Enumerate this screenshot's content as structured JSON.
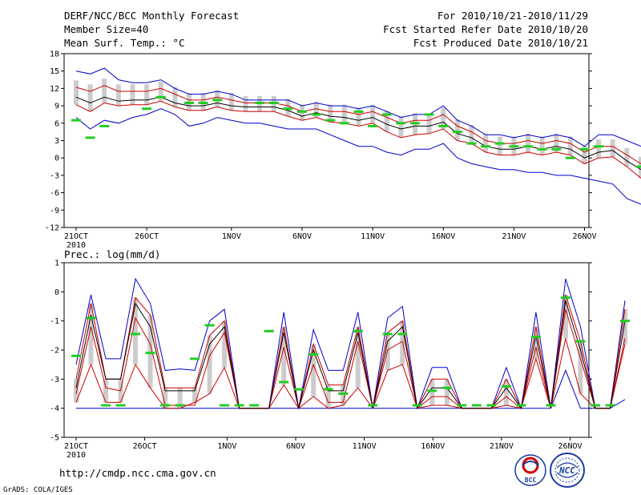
{
  "header": {
    "title": "DERF/NCC/BCC Monthly Forecast",
    "member_size": "Member Size=40",
    "variable": "Mean Surf. Temp.: °C",
    "period": "For 2010/10/21-2010/11/29",
    "started": "Fcst Started Refer Date 2010/10/20",
    "produced": "Fcst Produced Date 2010/10/21"
  },
  "footer": {
    "url": "http://cmdp.ncc.cma.gov.cn",
    "credit": "GrADS: COLA/IGES",
    "logo_bcc": "BCC",
    "logo_ncc": "NCC"
  },
  "colors": {
    "max_min": "#0000cc",
    "mean": "#000000",
    "spread": "#cc0000",
    "observed": "#22cc22",
    "box": "#cccccc"
  },
  "chart_data": [
    {
      "type": "line",
      "title": "Mean Surf. Temp.: °C",
      "ylabel": "°C",
      "ylim": [
        -12,
        18
      ],
      "yticks": [
        -12,
        -9,
        -6,
        -3,
        0,
        3,
        6,
        9,
        12,
        15,
        18
      ],
      "x_tick_labels": [
        "21OCT",
        "26OCT",
        "1NOV",
        "6NOV",
        "11NOV",
        "16NOV",
        "21NOV",
        "26NOV"
      ],
      "x_tick_days": [
        0,
        5,
        11,
        16,
        21,
        26,
        31,
        36
      ],
      "x_year_label": "2010",
      "series": [
        {
          "name": "max",
          "values": [
            15,
            14.5,
            15.5,
            13.5,
            13,
            13,
            13.5,
            12,
            11,
            11,
            11.5,
            11,
            10,
            10,
            10,
            10,
            9,
            9.5,
            9,
            9,
            8.5,
            9,
            8,
            7,
            7.5,
            7.5,
            9,
            6.5,
            5.5,
            4,
            4,
            3.5,
            4,
            3.5,
            4,
            3.5,
            2,
            4,
            4,
            3,
            2
          ]
        },
        {
          "name": "upper",
          "values": [
            12.2,
            11.5,
            12.5,
            11.5,
            11.5,
            11.5,
            12,
            11,
            10,
            10,
            10.5,
            10,
            9.5,
            9.5,
            9.5,
            9,
            8,
            8.5,
            8,
            8,
            7.5,
            8,
            7,
            6,
            6.5,
            6.5,
            7.5,
            5.5,
            4.5,
            3,
            2.5,
            2.5,
            3,
            2.5,
            3,
            2.5,
            1,
            2,
            2,
            0.5,
            -1
          ]
        },
        {
          "name": "mean",
          "values": [
            10.5,
            9.5,
            10.5,
            9.8,
            10,
            10,
            10.5,
            9.5,
            9,
            9,
            9.5,
            9,
            8.8,
            8.8,
            8.8,
            8.2,
            7.2,
            7.8,
            7.2,
            7,
            6.5,
            7,
            5.8,
            5,
            5.5,
            5.5,
            6.2,
            4.2,
            3.5,
            2,
            1.5,
            1.5,
            2,
            1.5,
            2,
            1.5,
            0,
            1,
            1.3,
            -0.5,
            -2
          ]
        },
        {
          "name": "lower",
          "values": [
            9.2,
            8,
            9.5,
            9,
            9.2,
            9.2,
            9.8,
            8.8,
            8.2,
            8.2,
            8.8,
            8.2,
            8,
            8,
            8,
            7.2,
            6.5,
            7,
            6.2,
            6,
            5.5,
            6,
            4.5,
            3.5,
            4,
            4.2,
            5,
            3,
            2.5,
            1,
            0.5,
            0.5,
            1,
            0.5,
            1,
            0.5,
            -1,
            0,
            0.2,
            -1.5,
            -3.5
          ]
        },
        {
          "name": "min",
          "values": [
            7,
            5,
            6.5,
            6,
            7,
            7.5,
            8.5,
            7.5,
            5.5,
            6,
            7,
            6.5,
            6,
            6,
            5.5,
            5,
            5,
            5,
            4,
            3,
            2,
            2,
            1,
            0.5,
            1.5,
            1.5,
            2.5,
            0,
            -1,
            -1.5,
            -2,
            -2,
            -2.5,
            -2.5,
            -3,
            -3,
            -3.5,
            -4,
            -4.5,
            -7,
            -8
          ]
        },
        {
          "name": "observed",
          "values": [
            6.5,
            3.5,
            5.5,
            null,
            null,
            8.5,
            10.5,
            null,
            9.5,
            9.5,
            10,
            null,
            null,
            9.5,
            9.5,
            8.5,
            8,
            7.5,
            6.5,
            6,
            8,
            5.5,
            7.5,
            6,
            6,
            7.5,
            5.5,
            4.5,
            2.5,
            2,
            2.5,
            2,
            2,
            1.5,
            1.5,
            0,
            1.5,
            2,
            null,
            null,
            -1.5
          ]
        }
      ]
    },
    {
      "type": "line",
      "title": "Prec.: log(mm/d)",
      "ylabel": "log(mm/d)",
      "ylim": [
        -5,
        1
      ],
      "yticks": [
        -5,
        -4,
        -3,
        -2,
        -1,
        0,
        1
      ],
      "x_tick_labels": [
        "21OCT",
        "26OCT",
        "1NOV",
        "6NOV",
        "11NOV",
        "16NOV",
        "21NOV",
        "26NOV"
      ],
      "x_tick_days": [
        0,
        5,
        11,
        16,
        21,
        26,
        31,
        36
      ],
      "x_year_label": "2010",
      "series": [
        {
          "name": "max",
          "values": [
            -2.5,
            -0.1,
            -2.3,
            -2.3,
            0.45,
            -0.4,
            -2.7,
            -2.65,
            -2.7,
            -1,
            -0.6,
            -4,
            -4,
            -4,
            -0.7,
            -4,
            -1.3,
            -2.7,
            -2.7,
            -0.7,
            -4,
            -0.9,
            -0.5,
            -4,
            -2.6,
            -2.6,
            -4,
            -4,
            -4,
            -2.6,
            -4,
            -0.7,
            -4,
            0.45,
            -1.2,
            -4,
            -4,
            -0.3
          ]
        },
        {
          "name": "upper",
          "values": [
            -3,
            -0.4,
            -3,
            -3,
            -0.2,
            -0.8,
            -3.3,
            -3.3,
            -3.3,
            -1.5,
            -1,
            -4,
            -4,
            -4,
            -1.2,
            -4,
            -1.8,
            -3.2,
            -3.2,
            -1.2,
            -4,
            -1.4,
            -1,
            -4,
            -3,
            -3,
            -4,
            -4,
            -4,
            -3,
            -4,
            -1.2,
            -4,
            -0.1,
            -1.7,
            -4,
            -4,
            -0.6
          ]
        },
        {
          "name": "mean",
          "values": [
            -3.3,
            -0.8,
            -3,
            -3,
            -0.4,
            -1.2,
            -3.4,
            -3.4,
            -3.4,
            -1.8,
            -1.2,
            -4,
            -4,
            -4,
            -1.4,
            -4,
            -2,
            -3.4,
            -3.4,
            -1.4,
            -4,
            -1.7,
            -1.2,
            -4,
            -3.3,
            -3.3,
            -4,
            -4,
            -4,
            -3.3,
            -4,
            -1.5,
            -4,
            -0.3,
            -2,
            -4,
            -4,
            -1
          ]
        },
        {
          "name": "lower",
          "values": [
            -3.5,
            -1.2,
            -3.3,
            -3.4,
            -0.9,
            -1.8,
            -3.9,
            -3.9,
            -3.9,
            -2.2,
            -1.4,
            -4,
            -4,
            -4,
            -1.9,
            -4,
            -2.5,
            -3.8,
            -3.8,
            -1.7,
            -4,
            -2,
            -1.7,
            -4,
            -3.6,
            -3.6,
            -4,
            -4,
            -4,
            -3.6,
            -4,
            -1.9,
            -4,
            -0.6,
            -2.3,
            -4,
            -4,
            -1.6
          ]
        },
        {
          "name": "lower2",
          "values": [
            -3.8,
            -2.5,
            -3.8,
            -3.8,
            -2.5,
            -3.3,
            -4,
            -4,
            -3.8,
            -3.5,
            -2.6,
            -4,
            -4,
            -4,
            -3.2,
            -4,
            -3.6,
            -4,
            -3.9,
            -3.3,
            -4,
            -2.7,
            -2.5,
            -4,
            -3.9,
            -3.9,
            -4,
            -4,
            -4,
            -3.9,
            -4,
            -2.3,
            -4,
            -1.6,
            -3.5,
            -4,
            -4,
            -1.8
          ]
        },
        {
          "name": "min",
          "values": [
            -4,
            -4,
            -4,
            -4,
            -4,
            -4,
            -4,
            -4,
            -4,
            -4,
            -4,
            -4,
            -4,
            -4,
            -4,
            -4,
            -4,
            -4,
            -4,
            -4,
            -4,
            -4,
            -4,
            -4,
            -4,
            -4,
            -4,
            -4,
            -4,
            -4,
            -4,
            -4,
            -4,
            -2.7,
            -4,
            -4,
            -4,
            -3.7
          ]
        },
        {
          "name": "observed",
          "values": [
            -2.2,
            -0.9,
            -3.9,
            -3.9,
            -1.45,
            -2.1,
            -3.9,
            -3.9,
            -2.3,
            -1.15,
            -3.9,
            -3.9,
            -3.9,
            -1.35,
            -3.1,
            -3.35,
            -2.15,
            -3.35,
            -3.5,
            -1.35,
            -3.9,
            -1.45,
            -1.45,
            -3.9,
            -3.4,
            -3.3,
            -3.9,
            -3.9,
            -3.9,
            -3.25,
            -3.9,
            -1.55,
            -3.9,
            -0.2,
            -1.7,
            -3.9,
            -3.9,
            -1
          ]
        }
      ]
    }
  ]
}
